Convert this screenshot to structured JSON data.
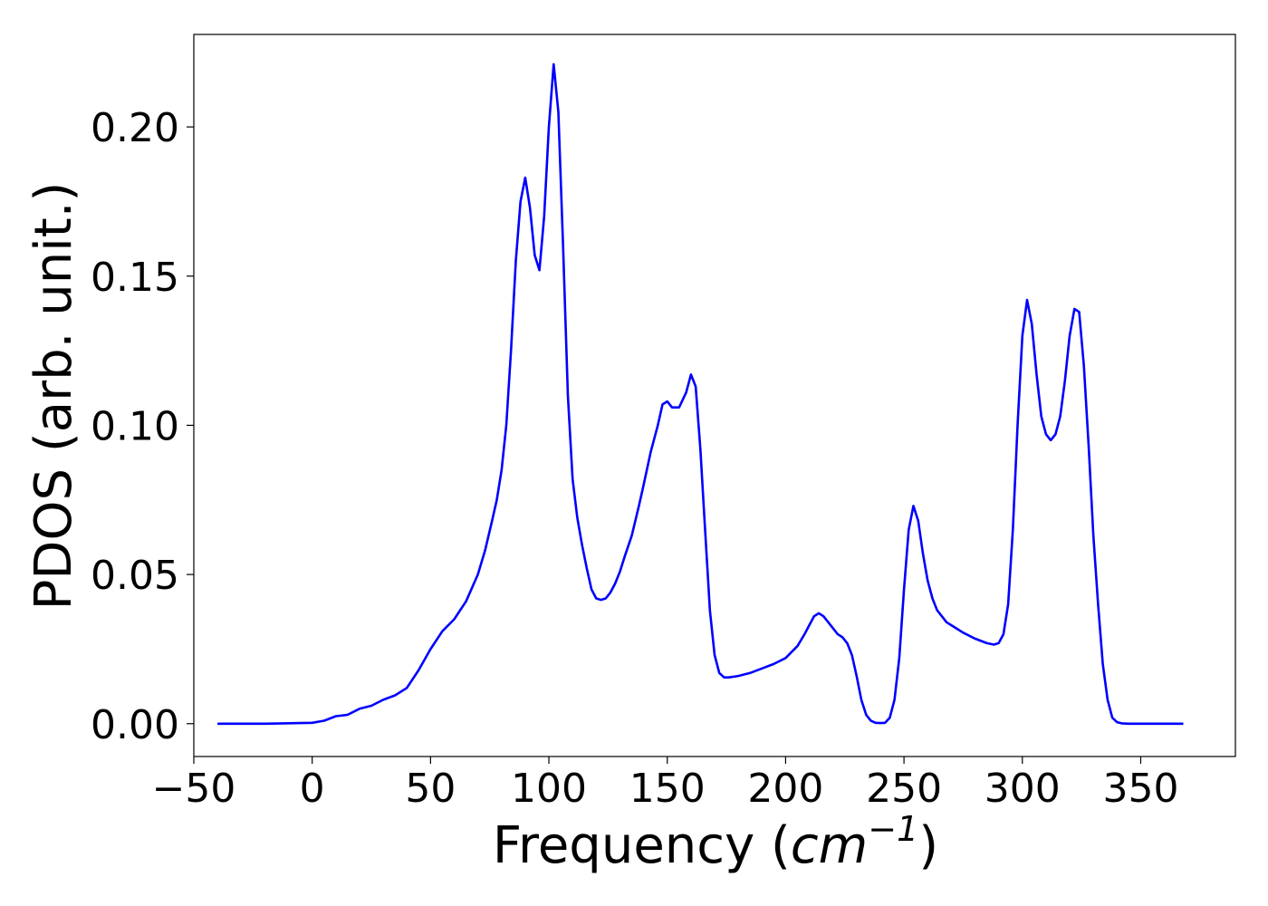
{
  "chart_data": {
    "type": "line",
    "xlabel_prefix": "Frequency (",
    "xlabel_unit": "cm",
    "xlabel_exponent": "−1",
    "xlabel_suffix": ")",
    "ylabel": "PDOS (arb. unit.)",
    "xlim": [
      -50,
      390
    ],
    "ylim": [
      -0.011,
      0.231
    ],
    "xticks": [
      -50,
      0,
      50,
      100,
      150,
      200,
      250,
      300,
      350
    ],
    "xtick_labels": [
      "−50",
      "0",
      "50",
      "100",
      "150",
      "200",
      "250",
      "300",
      "350"
    ],
    "yticks": [
      0.0,
      0.05,
      0.1,
      0.15,
      0.2
    ],
    "ytick_labels": [
      "0.00",
      "0.05",
      "0.10",
      "0.15",
      "0.20"
    ],
    "grid": false,
    "line_color": "#0000ff",
    "series": [
      {
        "x": [
          -40,
          -20,
          0,
          5,
          10,
          15,
          20,
          25,
          30,
          35,
          40,
          45,
          50,
          55,
          60,
          65,
          70,
          73,
          76,
          78,
          80,
          82,
          84,
          86,
          88,
          90,
          92,
          94,
          96,
          98,
          100,
          102,
          104,
          106,
          108,
          110,
          112,
          114,
          116,
          118,
          120,
          122,
          124,
          126,
          128,
          130,
          132,
          135,
          138,
          140,
          143,
          146,
          148,
          150,
          152,
          155,
          158,
          160,
          162,
          164,
          166,
          168,
          170,
          172,
          174,
          176,
          180,
          185,
          190,
          195,
          200,
          205,
          208,
          210,
          212,
          214,
          216,
          218,
          220,
          222,
          224,
          226,
          228,
          230,
          232,
          234,
          236,
          238,
          240,
          242,
          244,
          246,
          248,
          250,
          252,
          254,
          256,
          258,
          260,
          262,
          264,
          266,
          268,
          270,
          272,
          275,
          280,
          285,
          288,
          290,
          292,
          294,
          296,
          298,
          300,
          302,
          304,
          306,
          308,
          310,
          312,
          314,
          316,
          318,
          320,
          322,
          324,
          326,
          328,
          330,
          332,
          334,
          336,
          338,
          340,
          342,
          345,
          350,
          360,
          368
        ],
        "y": [
          0.0,
          0.0,
          0.0003,
          0.001,
          0.0025,
          0.003,
          0.005,
          0.006,
          0.008,
          0.0095,
          0.012,
          0.018,
          0.025,
          0.031,
          0.035,
          0.041,
          0.05,
          0.058,
          0.068,
          0.075,
          0.085,
          0.1,
          0.125,
          0.155,
          0.175,
          0.183,
          0.173,
          0.157,
          0.152,
          0.17,
          0.2,
          0.221,
          0.205,
          0.16,
          0.11,
          0.082,
          0.069,
          0.06,
          0.052,
          0.045,
          0.042,
          0.0415,
          0.042,
          0.044,
          0.047,
          0.051,
          0.056,
          0.063,
          0.073,
          0.08,
          0.091,
          0.1,
          0.107,
          0.108,
          0.106,
          0.106,
          0.111,
          0.117,
          0.113,
          0.092,
          0.065,
          0.038,
          0.023,
          0.017,
          0.0155,
          0.0155,
          0.016,
          0.017,
          0.0185,
          0.02,
          0.022,
          0.026,
          0.03,
          0.033,
          0.036,
          0.037,
          0.036,
          0.034,
          0.032,
          0.03,
          0.029,
          0.027,
          0.023,
          0.016,
          0.008,
          0.003,
          0.001,
          0.0003,
          0.0002,
          0.0003,
          0.002,
          0.008,
          0.022,
          0.045,
          0.065,
          0.073,
          0.068,
          0.057,
          0.048,
          0.042,
          0.038,
          0.036,
          0.034,
          0.033,
          0.032,
          0.0305,
          0.0285,
          0.027,
          0.0265,
          0.027,
          0.03,
          0.04,
          0.065,
          0.1,
          0.13,
          0.142,
          0.134,
          0.117,
          0.103,
          0.097,
          0.095,
          0.097,
          0.103,
          0.115,
          0.13,
          0.139,
          0.138,
          0.12,
          0.093,
          0.063,
          0.04,
          0.02,
          0.008,
          0.002,
          0.0005,
          0.0001,
          0.0,
          0.0,
          0.0,
          0.0
        ]
      }
    ]
  }
}
